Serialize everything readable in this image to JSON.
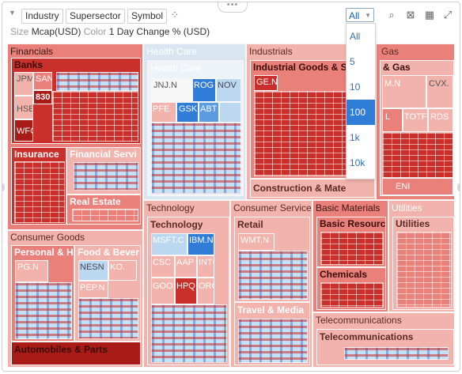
{
  "toolbar": {
    "buttons": [
      "Industry",
      "Supersector",
      "Symbol"
    ],
    "filter_value": "All",
    "size_label": "Size",
    "size_value": "Mcap(USD)",
    "color_label": "Color",
    "color_value": "1 Day Change % (USD)"
  },
  "dropdown": {
    "options": [
      "All",
      "5",
      "10",
      "100",
      "1k",
      "10k"
    ],
    "selected": "100"
  },
  "colors": {
    "strong_red": "#c9302b",
    "mid_red": "#e9807a",
    "light_red": "#f3b3ad",
    "blue": "#2f7dd6",
    "light_blue": "#bcd7f0"
  },
  "sectors": {
    "financials": "Financials",
    "health_care": "Health Care",
    "industrials": "Industrials",
    "oil_gas": "Gas",
    "consumer_goods": "Consumer Goods",
    "technology": "Technology",
    "consumer_services": "Consumer Service",
    "basic_materials": "Basic Materials",
    "utilities": "Utilities",
    "telecom": "Telecommunications"
  },
  "groups": {
    "banks": "Banks",
    "insurance": "Insurance",
    "financial_services": "Financial Servi",
    "real_estate": "Real Estate",
    "health_care": "Health Care",
    "industrial_goods": "Industrial Goods & S",
    "oil_gas": "& Gas",
    "construction": "Construction & Mate",
    "personal": "Personal & H",
    "food": "Food & Bever",
    "autos": "Automobiles & Parts",
    "technology": "Technology",
    "retail": "Retail",
    "travel": "Travel & Media",
    "basic_resources": "Basic Resourc",
    "chemicals": "Chemicals",
    "utilities": "Utilities",
    "telecom": "Telecommunications"
  },
  "tiles": {
    "jpm": "JPM",
    "san": "SAN",
    "b830": "830",
    "hse": "HSE",
    "wfc": "WFC",
    "jnj": "JNJ.N",
    "rog": "ROG",
    "nov": "NOV",
    "pfe": "PFE.",
    "gsk": "GSK",
    "abt": "ABT",
    "ge": "GE.N",
    "xom": "M.N",
    "cvx": "CVX.",
    "l": "L",
    "totf": "TOTF",
    "rds": "RDS",
    "eni": "ENI",
    "pg": "PG.N",
    "nesn": "NESN",
    "ko": "KO.",
    "pep": "PEP.N",
    "msft": "MSFT.C",
    "ibm": "IBM.N",
    "csc": "CSC",
    "aap": "AAP",
    "int": "INTC",
    "goo": "GOO",
    "hpq": "HPQ",
    "orc": "ORC",
    "wmt": "WMT.N"
  }
}
